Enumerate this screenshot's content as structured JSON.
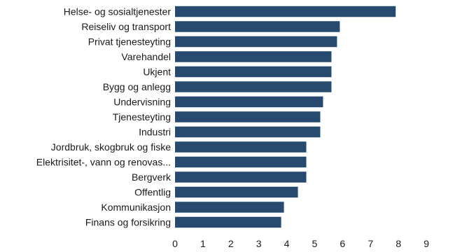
{
  "chart_data": {
    "type": "bar",
    "orientation": "horizontal",
    "categories": [
      "Helse- og sosialtjenester",
      "Reiseliv og transport",
      "Privat tjenesteyting",
      "Varehandel",
      "Ukjent",
      "Bygg og anlegg",
      "Undervisning",
      "Tjenesteyting",
      "Industri",
      "Jordbruk, skogbruk og fiske",
      "Elektrisitet-, vann og renovas...",
      "Bergverk",
      "Offentlig",
      "Kommunikasjon",
      "Finans og forsikring"
    ],
    "values": [
      7.9,
      5.9,
      5.8,
      5.6,
      5.6,
      5.6,
      5.3,
      5.2,
      5.2,
      4.7,
      4.7,
      4.7,
      4.4,
      3.9,
      3.8
    ],
    "xlim": [
      0,
      9
    ],
    "xticks": [
      "0",
      "1",
      "2",
      "3",
      "4",
      "5",
      "6",
      "7",
      "8",
      "9"
    ],
    "title": "",
    "xlabel": "",
    "ylabel": "",
    "grid": false,
    "legend": "none",
    "bar_color": "#284a6e"
  }
}
